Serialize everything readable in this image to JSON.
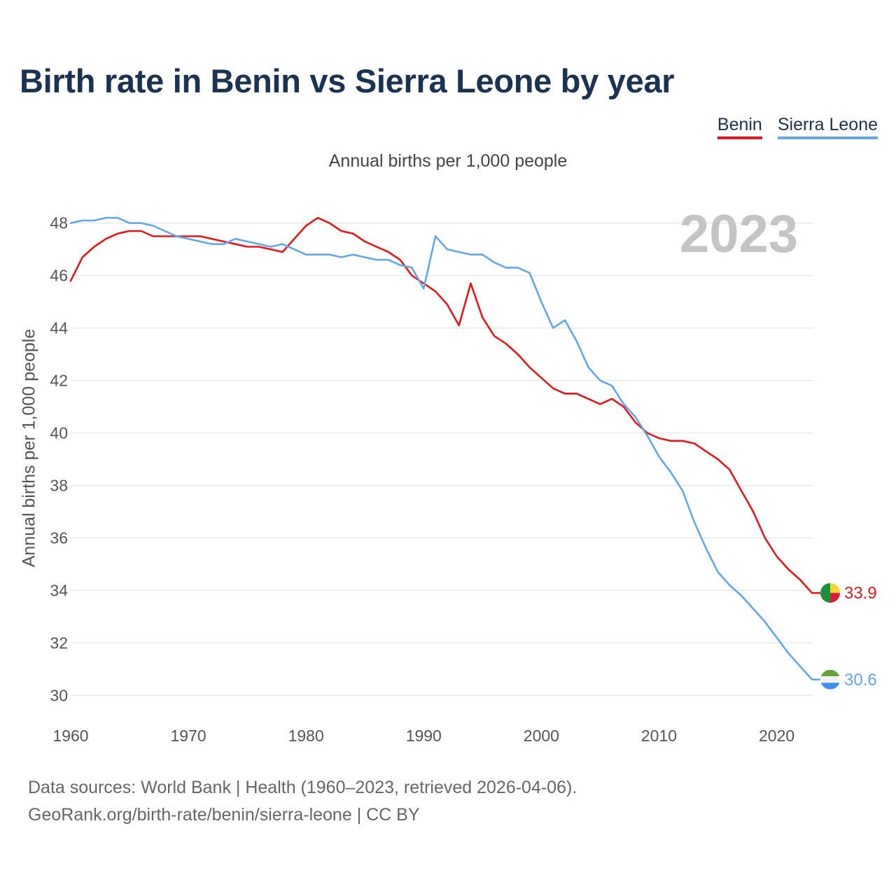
{
  "title": "Birth rate in Benin vs Sierra Leone by year",
  "subtitle": "Annual births per 1,000 people",
  "footer": {
    "line1": "Data sources: World Bank | Health (1960–2023, retrieved 2026-04-06).",
    "line2": "GeoRank.org/birth-rate/benin/sierra-leone | CC BY"
  },
  "colors": {
    "benin": "#e8151b",
    "sierra_leone": "#63a8e6",
    "grid": "#e6e6e6"
  },
  "chart_data": {
    "type": "line",
    "title": "Birth rate in Benin vs Sierra Leone by year",
    "xlabel": "",
    "ylabel": "Annual births per 1,000 people",
    "xlim": [
      1960,
      2023
    ],
    "ylim": [
      29.5,
      48.5
    ],
    "yticks": [
      30,
      32,
      34,
      36,
      38,
      40,
      42,
      44,
      46,
      48
    ],
    "xticks": [
      1960,
      1970,
      1980,
      1990,
      2000,
      2010,
      2020
    ],
    "watermark_year": "2023",
    "grid": true,
    "legend": "top-right",
    "series": [
      {
        "name": "Benin",
        "color": "#e8151b",
        "end_label": "33.9",
        "values": [
          45.8,
          46.7,
          47.1,
          47.4,
          47.6,
          47.7,
          47.7,
          47.5,
          47.5,
          47.5,
          47.5,
          47.5,
          47.4,
          47.3,
          47.2,
          47.1,
          47.1,
          47.0,
          46.9,
          47.4,
          47.9,
          48.2,
          48.0,
          47.7,
          47.6,
          47.3,
          47.1,
          46.9,
          46.6,
          46.0,
          45.7,
          45.4,
          44.9,
          44.1,
          45.7,
          44.4,
          43.7,
          43.4,
          43.0,
          42.5,
          42.1,
          41.7,
          41.5,
          41.5,
          41.3,
          41.1,
          41.3,
          41.0,
          40.4,
          40.0,
          39.8,
          39.7,
          39.7,
          39.6,
          39.3,
          39.0,
          38.6,
          37.8,
          37.0,
          36.0,
          35.3,
          34.8,
          34.4,
          33.9
        ]
      },
      {
        "name": "Sierra Leone",
        "color": "#63a8e6",
        "end_label": "30.6",
        "values": [
          48.0,
          48.1,
          48.1,
          48.2,
          48.2,
          48.0,
          48.0,
          47.9,
          47.7,
          47.5,
          47.4,
          47.3,
          47.2,
          47.2,
          47.4,
          47.3,
          47.2,
          47.1,
          47.2,
          47.0,
          46.8,
          46.8,
          46.8,
          46.7,
          46.8,
          46.7,
          46.6,
          46.6,
          46.4,
          46.3,
          45.5,
          47.5,
          47.0,
          46.9,
          46.8,
          46.8,
          46.5,
          46.3,
          46.3,
          46.1,
          45.0,
          44.0,
          44.3,
          43.5,
          42.5,
          42.0,
          41.8,
          41.1,
          40.6,
          39.9,
          39.1,
          38.5,
          37.8,
          36.6,
          35.6,
          34.7,
          34.2,
          33.8,
          33.3,
          32.8,
          32.2,
          31.6,
          31.1,
          30.6
        ]
      }
    ]
  }
}
